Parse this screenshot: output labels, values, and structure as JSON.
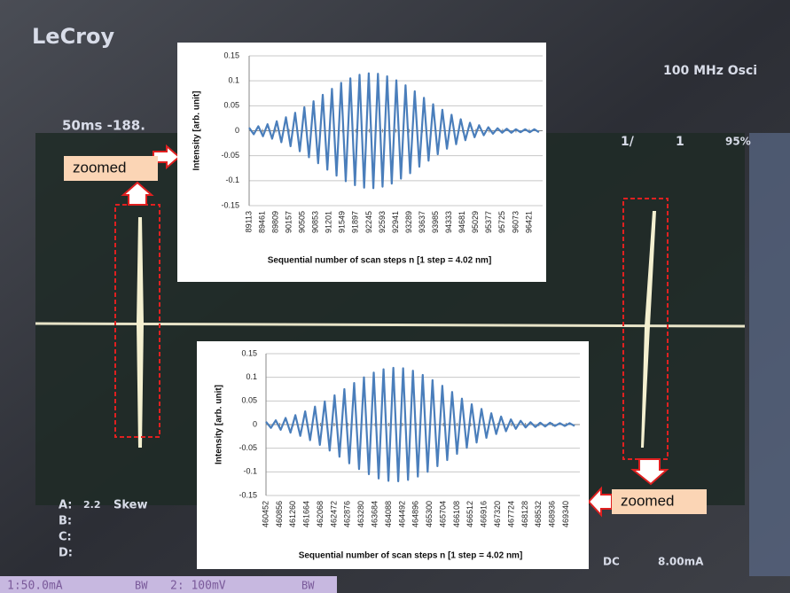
{
  "chart_data": [
    {
      "type": "line",
      "y_label": "Intensity [arb. unit]",
      "x_label": "Sequential number of scan steps n [1 step = 4.02 nm]",
      "x": [
        89113,
        89233,
        89353,
        89473,
        89593,
        89713,
        89833,
        89953,
        90073,
        90193,
        90313,
        90433,
        90553,
        90673,
        90793,
        90913,
        91033,
        91153,
        91273,
        91393,
        91513,
        91633,
        91753,
        91873,
        91993,
        92113,
        92233,
        92353,
        92473,
        92593,
        92713,
        92833,
        92953,
        93073,
        93193,
        93313,
        93433,
        93553,
        93673,
        93793,
        93913,
        94033,
        94153,
        94273,
        94393,
        94513,
        94633,
        94753,
        94873,
        94993,
        95113,
        95233,
        95353,
        95473,
        95593,
        95713,
        95833,
        95953,
        96073,
        96193,
        96313,
        96433,
        96553,
        96673
      ],
      "series": [
        {
          "color": "#4a7ebb",
          "values": [
            0.006,
            -0.007,
            0.009,
            -0.011,
            0.013,
            -0.016,
            0.019,
            -0.023,
            0.027,
            -0.031,
            0.036,
            -0.041,
            0.047,
            -0.053,
            0.059,
            -0.065,
            0.072,
            -0.078,
            0.084,
            -0.09,
            0.096,
            -0.101,
            0.105,
            -0.109,
            0.112,
            -0.114,
            0.115,
            -0.115,
            0.114,
            -0.112,
            0.109,
            -0.106,
            0.101,
            -0.096,
            0.091,
            -0.085,
            0.079,
            -0.072,
            0.066,
            -0.06,
            0.053,
            -0.047,
            0.042,
            -0.036,
            0.032,
            -0.027,
            0.023,
            -0.019,
            0.016,
            -0.013,
            0.011,
            -0.009,
            0.007,
            -0.006,
            0.005,
            -0.004,
            0.004,
            -0.004,
            0.003,
            -0.003,
            0.003,
            -0.003,
            0.003,
            -0.003
          ]
        }
      ],
      "xlim": [
        89113,
        96769
      ],
      "xticks": [
        89113,
        89461,
        89809,
        90157,
        90505,
        90853,
        91201,
        91549,
        91897,
        92245,
        92593,
        92941,
        93289,
        93637,
        93985,
        94333,
        94681,
        95029,
        95377,
        95725,
        96073,
        96421
      ],
      "ylim": [
        -0.15,
        0.15
      ],
      "yticks": [
        -0.15,
        -0.1,
        -0.05,
        0,
        0.05,
        0.1,
        0.15
      ],
      "grid": true
    },
    {
      "type": "line",
      "y_label": "Intensity [arb. unit]",
      "x_label": "Sequential number of scan steps n [1 step = 4.02 nm]",
      "x": [
        460452,
        460597,
        460742,
        460887,
        461032,
        461177,
        461322,
        461467,
        461612,
        461757,
        461902,
        462047,
        462192,
        462337,
        462482,
        462627,
        462772,
        462917,
        463062,
        463207,
        463352,
        463497,
        463642,
        463787,
        463932,
        464077,
        464222,
        464367,
        464512,
        464657,
        464802,
        464947,
        465092,
        465237,
        465382,
        465527,
        465672,
        465817,
        465962,
        466107,
        466252,
        466397,
        466542,
        466687,
        466832,
        466977,
        467122,
        467267,
        467412,
        467557,
        467702,
        467847,
        467992,
        468137,
        468282,
        468427,
        468572,
        468717,
        468862,
        469007,
        469152,
        469297,
        469442,
        469587
      ],
      "series": [
        {
          "color": "#4a7ebb",
          "values": [
            0.006,
            -0.007,
            0.009,
            -0.011,
            0.014,
            -0.017,
            0.02,
            -0.024,
            0.028,
            -0.033,
            0.038,
            -0.043,
            0.049,
            -0.055,
            0.062,
            -0.068,
            0.075,
            -0.082,
            0.088,
            -0.094,
            0.1,
            -0.105,
            0.11,
            -0.114,
            0.117,
            -0.119,
            0.12,
            -0.12,
            0.119,
            -0.117,
            0.114,
            -0.11,
            0.105,
            -0.1,
            0.094,
            -0.088,
            0.082,
            -0.075,
            0.069,
            -0.062,
            0.055,
            -0.049,
            0.043,
            -0.038,
            0.033,
            -0.028,
            0.024,
            -0.02,
            0.017,
            -0.014,
            0.011,
            -0.009,
            0.008,
            -0.006,
            0.005,
            -0.005,
            0.004,
            -0.004,
            0.004,
            -0.003,
            0.003,
            -0.003,
            0.003,
            -0.003
          ]
        }
      ],
      "xlim": [
        460452,
        469744
      ],
      "xticks": [
        460452,
        460856,
        461260,
        461664,
        462068,
        462472,
        462876,
        463280,
        463684,
        464088,
        464492,
        464896,
        465300,
        465704,
        466108,
        466512,
        466916,
        467320,
        467724,
        468128,
        468532,
        468936,
        469340
      ],
      "ylim": [
        -0.15,
        0.15
      ],
      "yticks": [
        -0.15,
        -0.1,
        -0.05,
        0,
        0.05,
        0.1,
        0.15
      ],
      "grid": true
    }
  ],
  "annotations": [
    "zoomed",
    "zoomed"
  ],
  "screen": {
    "brand": "LeCroy",
    "model": "100 MHz Osci",
    "timebase": "50ms -188.",
    "trigger": "1/",
    "count": "1",
    "percent": "95%",
    "channel_a": "A:",
    "a_value": "2.2",
    "a_mode": "Skew",
    "channel_b": "B:",
    "channel_c": "C:",
    "channel_d": "D:",
    "coupling": "DC",
    "level": "8.00mA",
    "ch1": "1:50.0mA",
    "bw1": "BW",
    "ch2": "2: 100mV",
    "bw2": "BW"
  }
}
